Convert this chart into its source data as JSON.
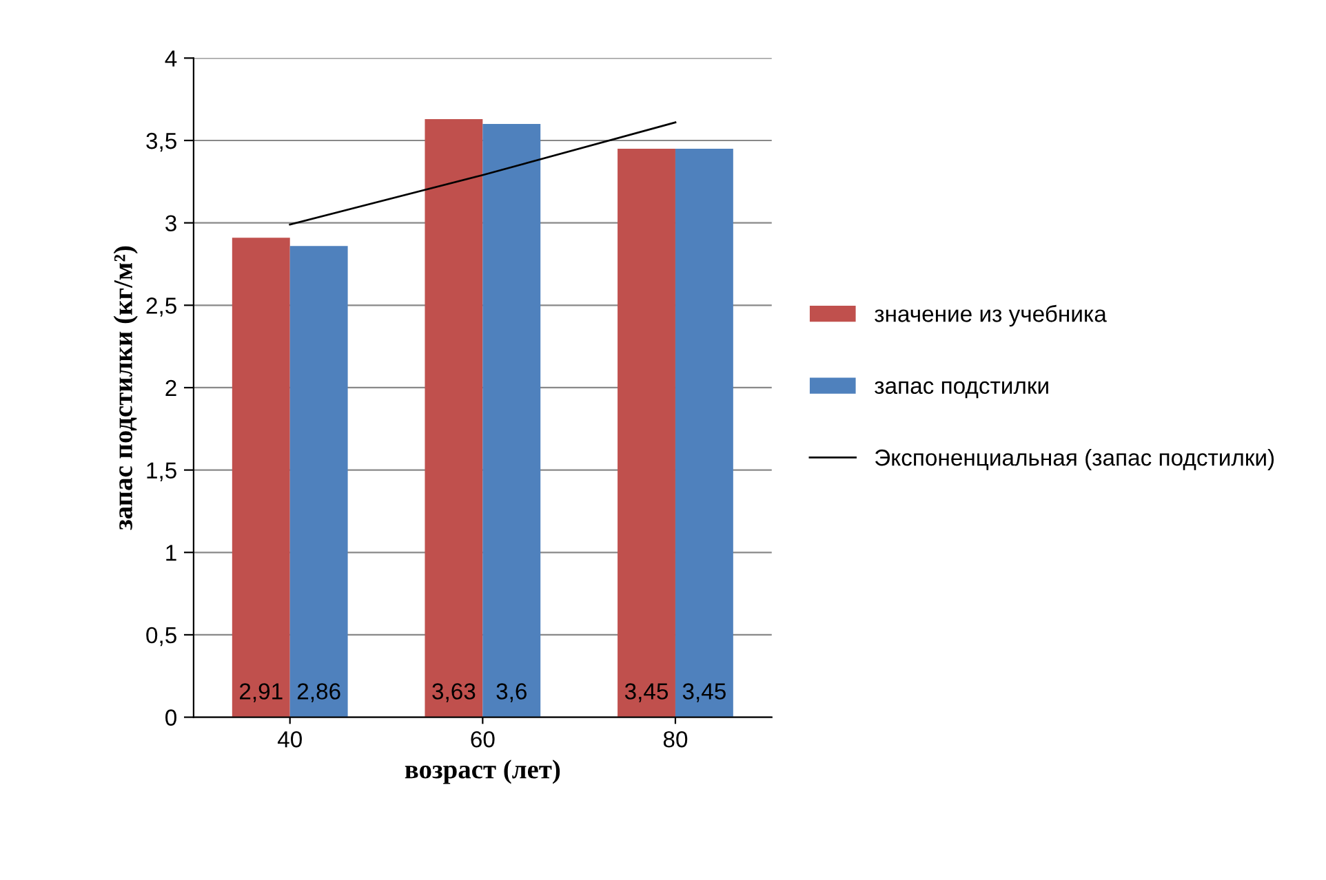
{
  "chart_data": {
    "type": "bar",
    "xlabel": "возраст (лет)",
    "ylabel": "запас подстилки (кг/м²)",
    "categories": [
      "40",
      "60",
      "80"
    ],
    "series": [
      {
        "name": "значение из учебника",
        "color": "#c0504d",
        "values": [
          2.91,
          3.63,
          3.45
        ],
        "value_labels": [
          "2,91",
          "3,63",
          "3,45"
        ]
      },
      {
        "name": "запас подстилки",
        "color": "#4f81bd",
        "values": [
          2.86,
          3.6,
          3.45
        ],
        "value_labels": [
          "2,86",
          "3,6",
          "3,45"
        ]
      },
      {
        "name": "Экспоненциальная (запас подстилки)",
        "type": "line",
        "color": "#000000",
        "values": [
          2.99,
          3.29,
          3.61
        ]
      }
    ],
    "ylim": [
      0,
      4
    ],
    "yticks": [
      {
        "value": 0,
        "label": "0"
      },
      {
        "value": 0.5,
        "label": "0,5"
      },
      {
        "value": 1,
        "label": "1"
      },
      {
        "value": 1.5,
        "label": "1,5"
      },
      {
        "value": 2,
        "label": "2"
      },
      {
        "value": 2.5,
        "label": "2,5"
      },
      {
        "value": 3,
        "label": "3"
      },
      {
        "value": 3.5,
        "label": "3,5"
      },
      {
        "value": 4,
        "label": "4"
      }
    ],
    "grid": "y",
    "legend": "right"
  }
}
